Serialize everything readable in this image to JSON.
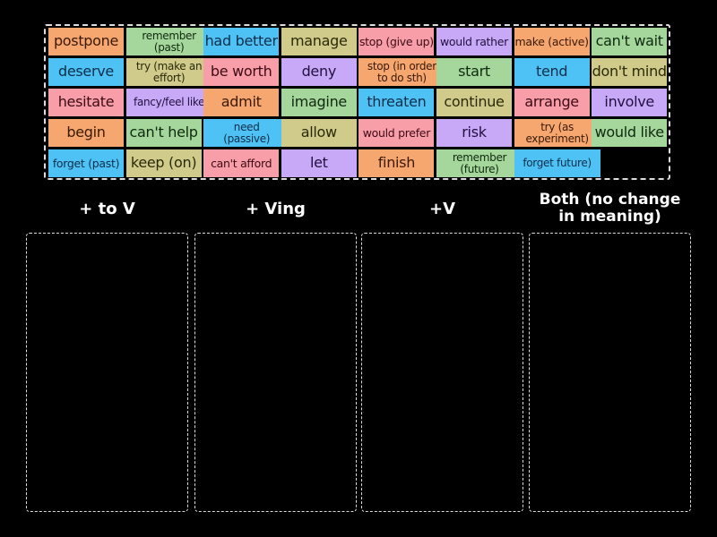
{
  "tiles": [
    [
      "postpone",
      "remember (past)",
      "had better",
      "manage",
      "stop (give up)",
      "would rather",
      "make (active)",
      "can't wait"
    ],
    [
      "deserve",
      "try (make an effort)",
      "be worth",
      "deny",
      "stop (in order to do sth)",
      "start",
      "tend",
      "don't mind"
    ],
    [
      "hesitate",
      "fancy/feel like",
      "admit",
      "imagine",
      "threaten",
      "continue",
      "arrange",
      "involve"
    ],
    [
      "begin",
      "can't help",
      "need (passive)",
      "allow",
      "would prefer",
      "risk",
      "try (as experiment)",
      "would like"
    ],
    [
      "forget (past)",
      "keep (on)",
      "can't afford",
      "let",
      "finish",
      "remember (future)",
      "forget future)"
    ]
  ],
  "tile_colors": {
    "orange": "#f6a66f",
    "green": "#a5d69c",
    "blue": "#4fc2f5",
    "olive": "#d0cb8b",
    "pink": "#f89ea8",
    "purple": "#c8a9f7"
  },
  "tile_color_grid": [
    [
      "orange",
      "green",
      "blue",
      "olive",
      "pink",
      "purple",
      "orange",
      "green"
    ],
    [
      "blue",
      "olive",
      "pink",
      "purple",
      "orange",
      "green",
      "blue",
      "olive"
    ],
    [
      "pink",
      "purple",
      "orange",
      "green",
      "blue",
      "olive",
      "pink",
      "purple"
    ],
    [
      "orange",
      "green",
      "blue",
      "olive",
      "pink",
      "purple",
      "orange",
      "green"
    ],
    [
      "blue",
      "olive",
      "pink",
      "purple",
      "orange",
      "green",
      "blue"
    ]
  ],
  "categories": [
    {
      "label": "+ to V"
    },
    {
      "label": "+ Ving"
    },
    {
      "label": "+V"
    },
    {
      "label": "Both (no change in meaning)"
    }
  ]
}
